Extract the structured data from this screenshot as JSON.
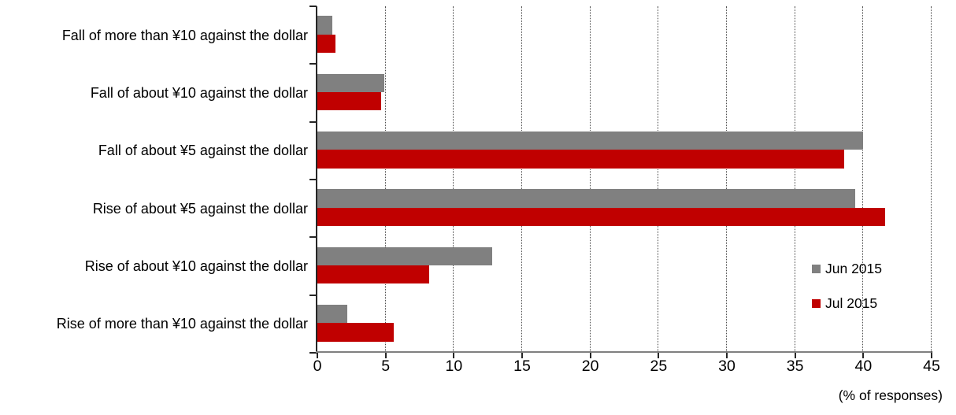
{
  "chart_data": {
    "type": "bar",
    "orientation": "horizontal",
    "title": "",
    "xlabel": "(% of responses)",
    "ylabel": "",
    "xlim": [
      0,
      45
    ],
    "xticks": [
      0,
      5,
      10,
      15,
      20,
      25,
      30,
      35,
      40,
      45
    ],
    "grid": "vertical-dotted-gridlines",
    "legend_position": "inside-right",
    "categories": [
      "Fall of more than ¥10 against the dollar",
      "Fall of about ¥10 against the dollar",
      "Fall of about ¥5 against the dollar",
      "Rise of about ¥5 against the dollar",
      "Rise of about ¥10 against the dollar",
      "Rise of more than ¥10 against the dollar"
    ],
    "series": [
      {
        "name": "Jun 2015",
        "color": "#808080",
        "values": [
          1.1,
          4.9,
          40.0,
          39.4,
          12.8,
          2.2
        ]
      },
      {
        "name": "Jul 2015",
        "color": "#C00000",
        "values": [
          1.3,
          4.7,
          38.6,
          41.6,
          8.2,
          5.6
        ]
      }
    ],
    "colors": {
      "background": "#FFFFFF",
      "gridline": "#4D4D4D",
      "x_axis_line": "#808080",
      "y_axis_line": "#262626",
      "text": "#000000"
    }
  }
}
